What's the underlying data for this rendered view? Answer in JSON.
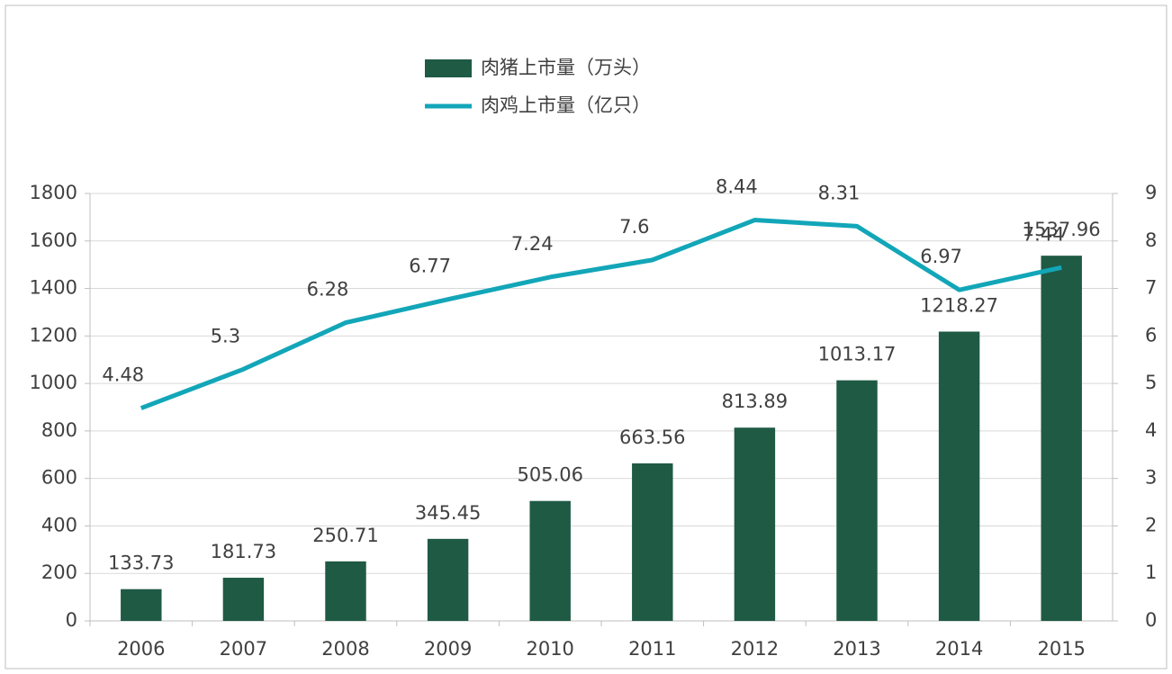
{
  "chart_data": {
    "type": "bar-line",
    "categories": [
      "2006",
      "2007",
      "2008",
      "2009",
      "2010",
      "2011",
      "2012",
      "2013",
      "2014",
      "2015"
    ],
    "series": [
      {
        "name": "肉猪上市量（万头）",
        "type": "bar",
        "color": "#1f5a45",
        "values": [
          133.73,
          181.73,
          250.71,
          345.45,
          505.06,
          663.56,
          813.89,
          1013.17,
          1218.27,
          1537.96
        ]
      },
      {
        "name": "肉鸡上市量（亿只）",
        "type": "line",
        "axis": "y2",
        "color": "#12a6b8",
        "values": [
          4.48,
          5.3,
          6.28,
          6.77,
          7.24,
          7.6,
          8.44,
          8.31,
          6.97,
          7.44
        ]
      }
    ],
    "ylim": [
      0,
      1800
    ],
    "yticks": [
      0,
      200,
      400,
      600,
      800,
      1000,
      1200,
      1400,
      1600,
      1800
    ],
    "y2lim": [
      0,
      9
    ],
    "y2ticks": [
      0,
      1,
      2,
      3,
      4,
      5,
      6,
      7,
      8,
      9
    ],
    "grid": true,
    "legend": "top"
  }
}
